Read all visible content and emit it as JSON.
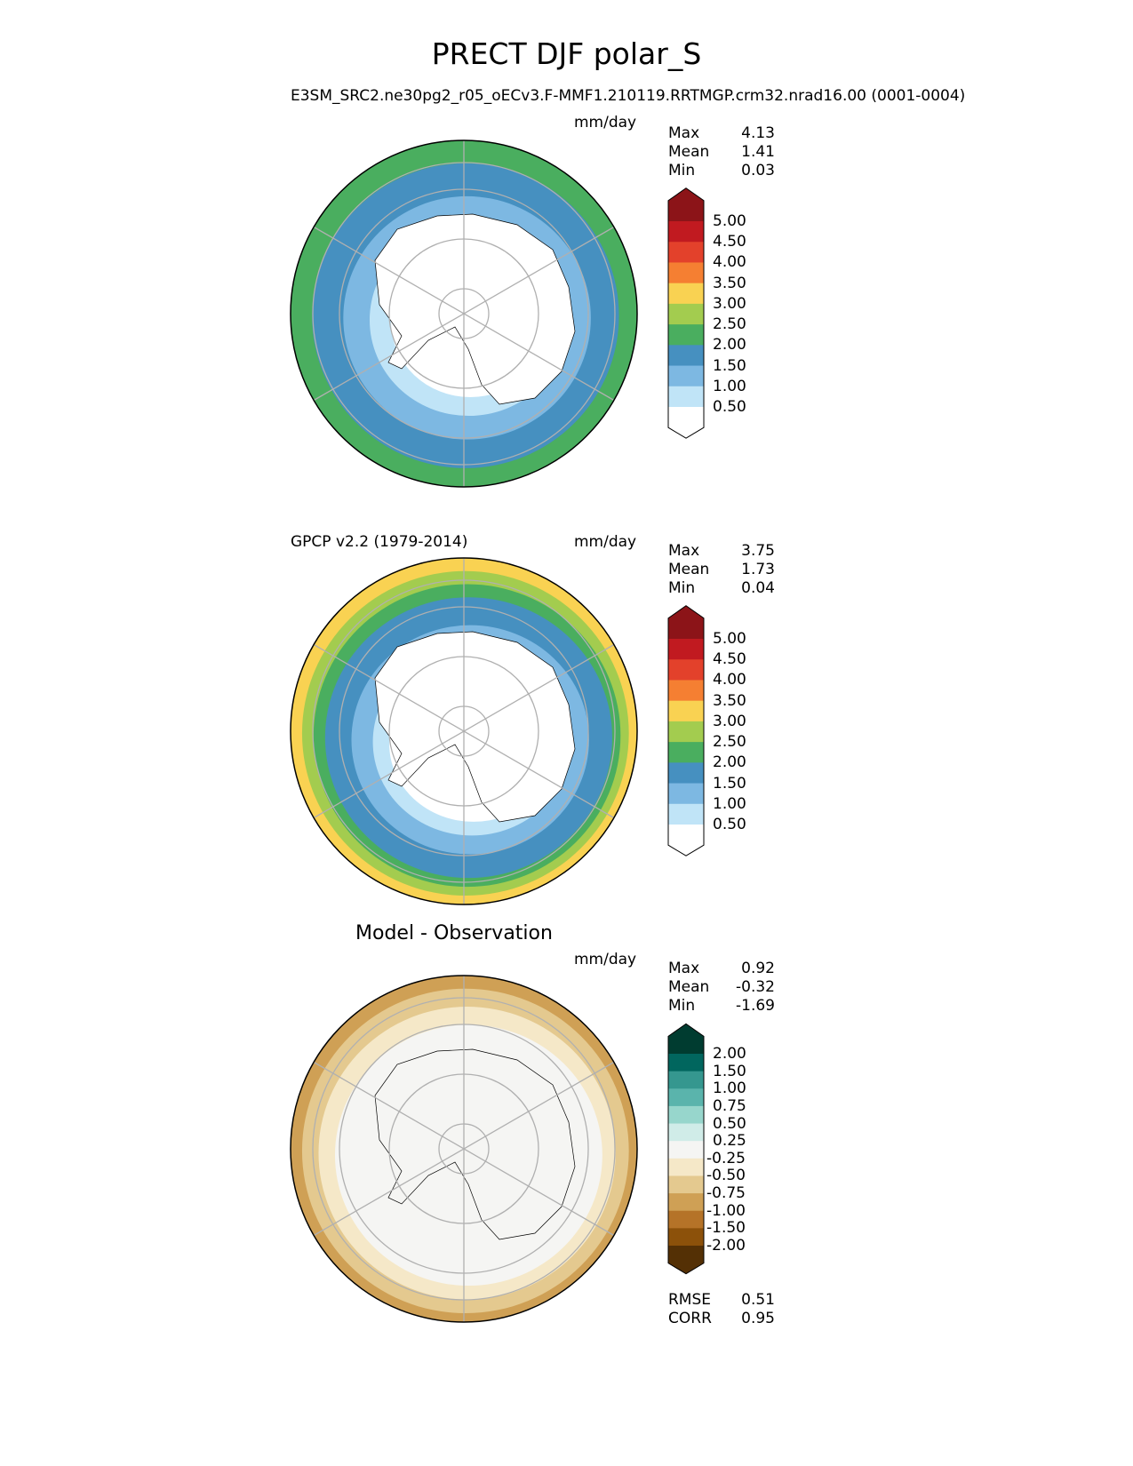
{
  "title": "PRECT DJF polar_S",
  "chart_data": [
    {
      "type": "heatmap",
      "projection": "south-polar-stereographic",
      "title_left": "E3SM_SRC2.ne30pg2_r05_oECv3.F-MMF1.210119.RRTMGP.crm32.nrad16.00 (0001-0004)",
      "units": "mm/day",
      "stats": [
        {
          "label": "Max",
          "value": "4.13"
        },
        {
          "label": "Mean",
          "value": "1.41"
        },
        {
          "label": "Min",
          "value": "0.03"
        }
      ],
      "colorbar": {
        "ticks": [
          "5.00",
          "4.50",
          "4.00",
          "3.50",
          "3.00",
          "2.50",
          "2.00",
          "1.50",
          "1.00",
          "0.50"
        ],
        "colors": [
          "#8c1418",
          "#c11a20",
          "#e3412b",
          "#f57f32",
          "#f9d252",
          "#a3cc4f",
          "#4aae5f",
          "#4690c0",
          "#7db8e2",
          "#c0e4f7",
          "#ffffff"
        ]
      },
      "zonal_bands": [
        {
          "lat_from": -55,
          "lat_to": -59,
          "color_index": 6
        },
        {
          "lat_from": -59,
          "lat_to": -65,
          "color_index": 7
        },
        {
          "lat_from": -65,
          "lat_to": -70,
          "color_index": 8
        },
        {
          "lat_from": -70,
          "lat_to": -74,
          "color_index": 9
        },
        {
          "lat_from": -74,
          "lat_to": -90,
          "color_index": 10
        }
      ]
    },
    {
      "type": "heatmap",
      "projection": "south-polar-stereographic",
      "title_left": "GPCP v2.2 (1979-2014)",
      "units": "mm/day",
      "stats": [
        {
          "label": "Max",
          "value": "3.75"
        },
        {
          "label": "Mean",
          "value": "1.73"
        },
        {
          "label": "Min",
          "value": "0.04"
        }
      ],
      "colorbar": {
        "ticks": [
          "5.00",
          "4.50",
          "4.00",
          "3.50",
          "3.00",
          "2.50",
          "2.00",
          "1.50",
          "1.00",
          "0.50"
        ],
        "colors": [
          "#8c1418",
          "#c11a20",
          "#e3412b",
          "#f57f32",
          "#f9d252",
          "#a3cc4f",
          "#4aae5f",
          "#4690c0",
          "#7db8e2",
          "#c0e4f7",
          "#ffffff"
        ]
      },
      "zonal_bands": [
        {
          "lat_from": -55,
          "lat_to": -57,
          "color_index": 4
        },
        {
          "lat_from": -57,
          "lat_to": -59,
          "color_index": 5
        },
        {
          "lat_from": -59,
          "lat_to": -61,
          "color_index": 6
        },
        {
          "lat_from": -61,
          "lat_to": -66,
          "color_index": 7
        },
        {
          "lat_from": -66,
          "lat_to": -70,
          "color_index": 8
        },
        {
          "lat_from": -70,
          "lat_to": -73,
          "color_index": 9
        },
        {
          "lat_from": -73,
          "lat_to": -90,
          "color_index": 10
        }
      ]
    },
    {
      "type": "heatmap",
      "projection": "south-polar-stereographic",
      "title_center": "Model - Observation",
      "units": "mm/day",
      "stats": [
        {
          "label": "Max",
          "value": "0.92"
        },
        {
          "label": "Mean",
          "value": "-0.32"
        },
        {
          "label": "Min",
          "value": "-1.69"
        }
      ],
      "colorbar": {
        "ticks": [
          "2.00",
          "1.50",
          "1.00",
          "0.75",
          "0.50",
          "0.25",
          "-0.25",
          "-0.50",
          "-0.75",
          "-1.00",
          "-1.50",
          "-2.00"
        ],
        "colors": [
          "#003c30",
          "#01665e",
          "#35978f",
          "#5ab4ac",
          "#97d6cc",
          "#d0ece8",
          "#f5f5f3",
          "#f5e8c8",
          "#e4c98f",
          "#cfa055",
          "#b57328",
          "#8c510a",
          "#543005"
        ]
      },
      "zonal_bands": [
        {
          "lat_from": -55,
          "lat_to": -57,
          "color_index": 9
        },
        {
          "lat_from": -57,
          "lat_to": -60,
          "color_index": 8
        },
        {
          "lat_from": -60,
          "lat_to": -63,
          "color_index": 7
        },
        {
          "lat_from": -63,
          "lat_to": -90,
          "color_index": 6
        }
      ],
      "metrics": [
        {
          "label": "RMSE",
          "value": "0.51"
        },
        {
          "label": "CORR",
          "value": "0.95"
        }
      ]
    }
  ]
}
